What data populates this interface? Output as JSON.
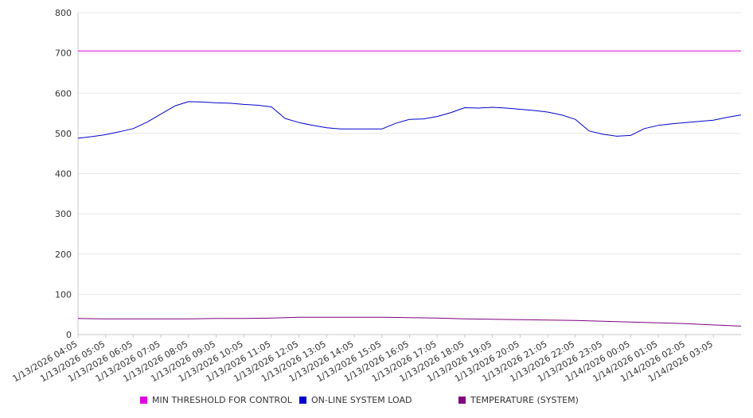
{
  "chart_data": {
    "type": "line",
    "title": "",
    "xlabel": "",
    "ylabel": "",
    "ylim": [
      0,
      800
    ],
    "y_ticks": [
      "0",
      "100",
      "200",
      "300",
      "400",
      "500",
      "600",
      "700",
      "800"
    ],
    "x_tick_labels": [
      "1/13/2026 04:05",
      "1/13/2026 05:05",
      "1/13/2026 06:05",
      "1/13/2026 07:05",
      "1/13/2026 08:05",
      "1/13/2026 09:05",
      "1/13/2026 10:05",
      "1/13/2026 11:05",
      "1/13/2026 12:05",
      "1/13/2026 13:05",
      "1/13/2026 14:05",
      "1/13/2026 15:05",
      "1/13/2026 16:05",
      "1/13/2026 17:05",
      "1/13/2026 18:05",
      "1/13/2026 19:05",
      "1/13/2026 20:05",
      "1/13/2026 21:05",
      "1/13/2026 22:05",
      "1/13/2026 23:05",
      "1/14/2026 00:05",
      "1/14/2026 01:05",
      "1/14/2026 02:05",
      "1/14/2026 03:05"
    ],
    "grid": "horizontal",
    "legend_position": "bottom",
    "series": [
      {
        "name": "MIN THRESHOLD FOR CONTROL",
        "color": "#e000e0",
        "x": [
          "1/13/2026 04:05",
          "1/14/2026 04:05"
        ],
        "values": [
          705,
          705
        ]
      },
      {
        "name": "ON-LINE SYSTEM LOAD",
        "color": "#0000cc",
        "x": [
          "1/13/2026 04:05",
          "1/13/2026 04:35",
          "1/13/2026 05:05",
          "1/13/2026 05:35",
          "1/13/2026 06:05",
          "1/13/2026 06:35",
          "1/13/2026 07:05",
          "1/13/2026 07:35",
          "1/13/2026 08:05",
          "1/13/2026 08:35",
          "1/13/2026 09:05",
          "1/13/2026 09:35",
          "1/13/2026 10:05",
          "1/13/2026 10:35",
          "1/13/2026 11:05",
          "1/13/2026 11:35",
          "1/13/2026 12:05",
          "1/13/2026 12:35",
          "1/13/2026 13:05",
          "1/13/2026 13:35",
          "1/13/2026 14:05",
          "1/13/2026 14:35",
          "1/13/2026 15:05",
          "1/13/2026 15:35",
          "1/13/2026 16:05",
          "1/13/2026 16:35",
          "1/13/2026 17:05",
          "1/13/2026 17:35",
          "1/13/2026 18:05",
          "1/13/2026 18:35",
          "1/13/2026 19:05",
          "1/13/2026 19:35",
          "1/13/2026 20:05",
          "1/13/2026 20:35",
          "1/13/2026 21:05",
          "1/13/2026 21:35",
          "1/13/2026 22:05",
          "1/13/2026 22:35",
          "1/13/2026 23:05",
          "1/13/2026 23:35",
          "1/14/2026 00:05",
          "1/14/2026 00:35",
          "1/14/2026 01:05",
          "1/14/2026 01:35",
          "1/14/2026 02:05",
          "1/14/2026 02:35",
          "1/14/2026 03:05",
          "1/14/2026 03:35",
          "1/14/2026 04:05"
        ],
        "values": [
          488,
          492,
          497,
          504,
          512,
          528,
          548,
          568,
          579,
          578,
          576,
          575,
          572,
          570,
          566,
          537,
          527,
          520,
          514,
          511,
          511,
          511,
          511,
          525,
          535,
          536,
          542,
          552,
          564,
          563,
          565,
          563,
          560,
          557,
          553,
          546,
          535,
          506,
          498,
          493,
          495,
          512,
          520,
          524,
          527,
          530,
          533,
          540,
          546
        ]
      },
      {
        "name": "TEMPERATURE (SYSTEM)",
        "color": "#800080",
        "x": [
          "1/13/2026 04:05",
          "1/13/2026 05:05",
          "1/13/2026 06:05",
          "1/13/2026 07:05",
          "1/13/2026 08:05",
          "1/13/2026 09:05",
          "1/13/2026 10:05",
          "1/13/2026 11:05",
          "1/13/2026 12:05",
          "1/13/2026 13:05",
          "1/13/2026 14:05",
          "1/13/2026 15:05",
          "1/13/2026 16:05",
          "1/13/2026 17:05",
          "1/13/2026 18:05",
          "1/13/2026 19:05",
          "1/13/2026 20:05",
          "1/13/2026 21:05",
          "1/13/2026 22:05",
          "1/13/2026 23:05",
          "1/14/2026 00:05",
          "1/14/2026 01:05",
          "1/14/2026 02:05",
          "1/14/2026 03:05",
          "1/14/2026 04:05"
        ],
        "values": [
          40,
          39,
          39,
          39,
          39,
          40,
          40,
          41,
          43,
          43,
          43,
          43,
          42,
          41,
          39,
          38,
          37,
          36,
          35,
          33,
          31,
          29,
          27,
          24,
          21
        ]
      }
    ]
  },
  "legend": {
    "items": [
      {
        "label": "MIN THRESHOLD FOR CONTROL",
        "color": "#e000e0"
      },
      {
        "label": "ON-LINE SYSTEM LOAD",
        "color": "#0000cc"
      },
      {
        "label": "TEMPERATURE (SYSTEM)",
        "color": "#800080"
      }
    ]
  }
}
